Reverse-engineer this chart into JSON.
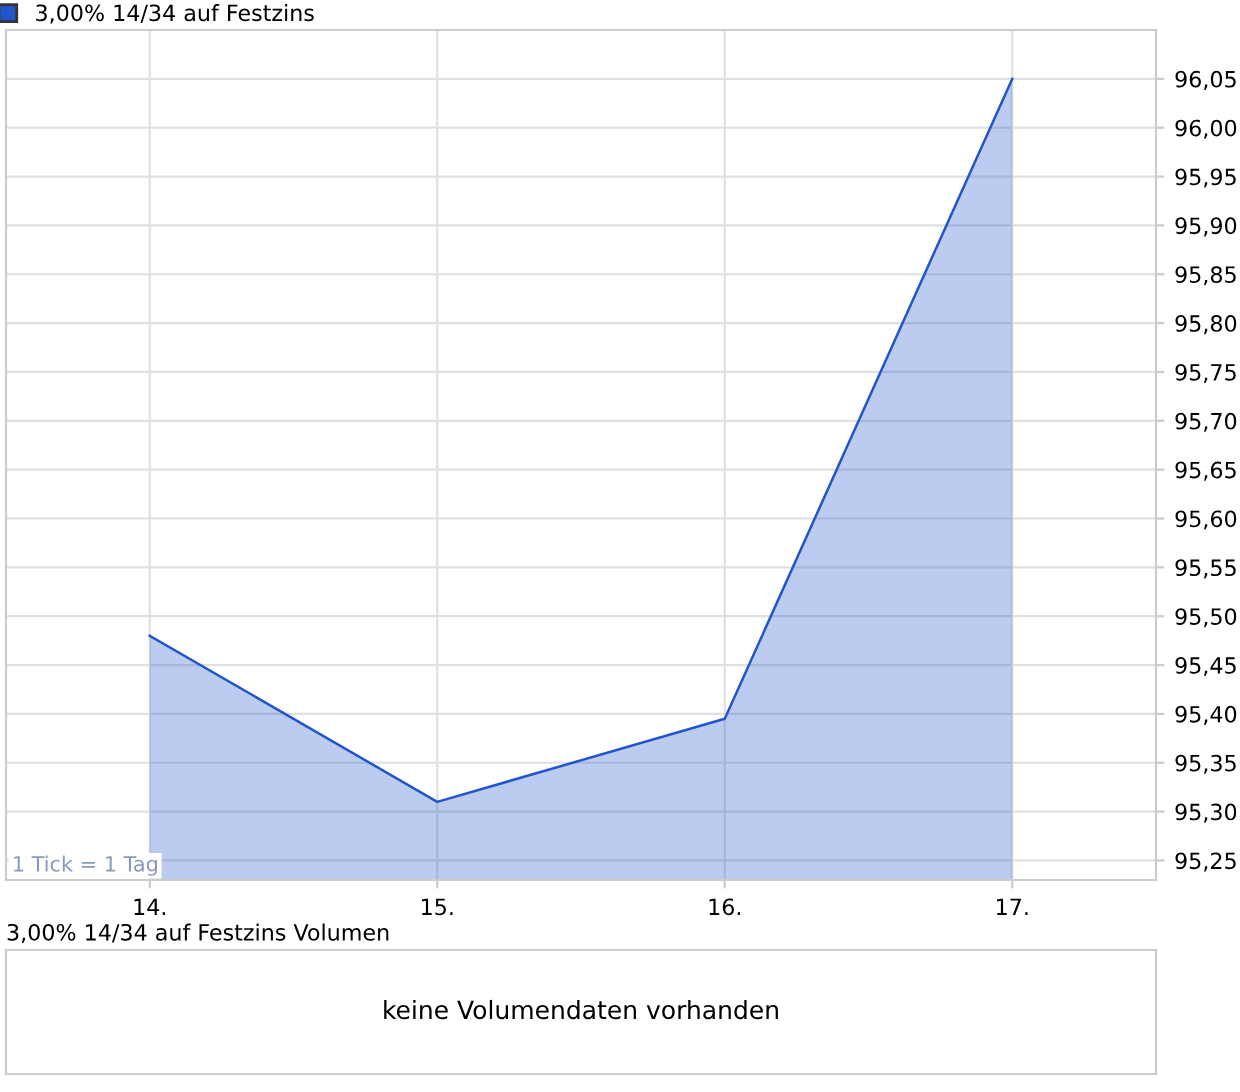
{
  "chart_data": [
    {
      "type": "area",
      "x": [
        14,
        15,
        16,
        17
      ],
      "series": [
        {
          "name": "3,00% 14/34 auf Festzins",
          "color": "#2255cc",
          "values": [
            95.48,
            95.31,
            95.395,
            96.05
          ]
        }
      ],
      "xlim": [
        13.5,
        17.5
      ],
      "xticks": [
        {
          "value": 14,
          "label": "14."
        },
        {
          "value": 15,
          "label": "15."
        },
        {
          "value": 16,
          "label": "16."
        },
        {
          "value": 17,
          "label": "17."
        }
      ],
      "ylim": [
        95.23,
        96.1
      ],
      "yticks": [
        {
          "value": 95.25,
          "label": "95,25"
        },
        {
          "value": 95.3,
          "label": "95,30"
        },
        {
          "value": 95.35,
          "label": "95,35"
        },
        {
          "value": 95.4,
          "label": "95,40"
        },
        {
          "value": 95.45,
          "label": "95,45"
        },
        {
          "value": 95.5,
          "label": "95,50"
        },
        {
          "value": 95.55,
          "label": "95,55"
        },
        {
          "value": 95.6,
          "label": "95,60"
        },
        {
          "value": 95.65,
          "label": "95,65"
        },
        {
          "value": 95.7,
          "label": "95,70"
        },
        {
          "value": 95.75,
          "label": "95,75"
        },
        {
          "value": 95.8,
          "label": "95,80"
        },
        {
          "value": 95.85,
          "label": "95,85"
        },
        {
          "value": 95.9,
          "label": "95,90"
        },
        {
          "value": 95.95,
          "label": "95,95"
        },
        {
          "value": 96.0,
          "label": "96,00"
        },
        {
          "value": 96.05,
          "label": "96,05"
        }
      ],
      "grid": true,
      "legend": "top left",
      "annotations": [
        "1 Tick = 1 Tag"
      ]
    },
    {
      "type": "other",
      "title": "3,00% 14/34 auf Festzins Volumen",
      "annotations": [
        "keine Volumendaten vorhanden"
      ]
    }
  ]
}
